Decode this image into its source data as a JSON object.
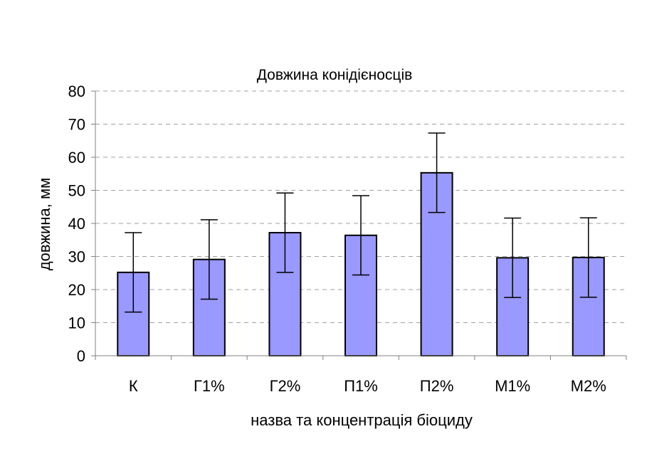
{
  "chart_data": {
    "type": "bar",
    "title": "Довжина конідієносців",
    "xlabel": "назва та концентрація біоциду",
    "ylabel": "довжина, мм",
    "categories": [
      "К",
      "Г1%",
      "Г2%",
      "П1%",
      "П2%",
      "М1%",
      "М2%"
    ],
    "series": [
      {
        "values": [
          25.2,
          29.1,
          37.2,
          36.4,
          55.3,
          29.6,
          29.7
        ],
        "error": [
          12,
          12,
          12,
          12,
          12,
          12,
          12
        ]
      }
    ],
    "ylim": [
      0,
      80
    ],
    "yticks": [
      0,
      10,
      20,
      30,
      40,
      50,
      60,
      70,
      80
    ],
    "grid": "horizontal-dashed",
    "legend": "none",
    "colors": {
      "bar_fill": "#9999ff",
      "bar_stroke": "#000000",
      "grid": "#a0a0a0",
      "axis": "#808080"
    }
  }
}
